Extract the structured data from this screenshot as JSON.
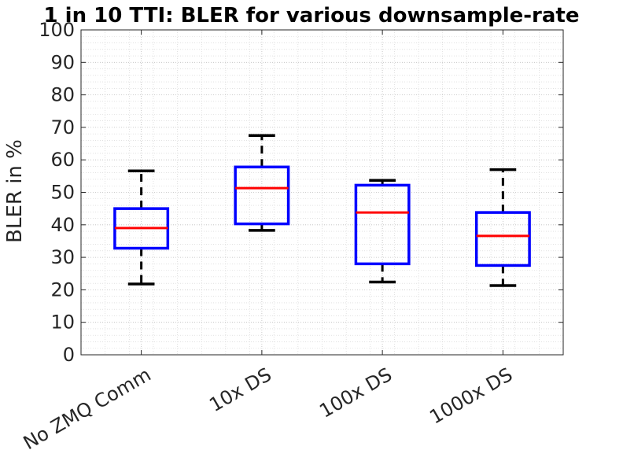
{
  "chart_data": {
    "type": "box",
    "title": "1 in 10 TTI: BLER for various downsample-rate",
    "xlabel": "",
    "ylabel": "BLER in %",
    "ylim": [
      0,
      100
    ],
    "yticks": [
      0,
      10,
      20,
      30,
      40,
      50,
      60,
      70,
      80,
      90,
      100
    ],
    "grid": true,
    "minor_grid": true,
    "categories": [
      "No ZMQ Comm",
      "10x DS",
      "100x DS",
      "1000x DS"
    ],
    "boxes": [
      {
        "category": "No ZMQ Comm",
        "whisker_low": 21.8,
        "q1": 32.8,
        "median": 39.0,
        "q3": 45.0,
        "whisker_high": 56.6
      },
      {
        "category": "10x DS",
        "whisker_low": 38.3,
        "q1": 40.3,
        "median": 51.3,
        "q3": 57.8,
        "whisker_high": 67.5
      },
      {
        "category": "100x DS",
        "whisker_low": 22.4,
        "q1": 28.0,
        "median": 43.8,
        "q3": 52.2,
        "whisker_high": 53.7
      },
      {
        "category": "1000x DS",
        "whisker_low": 21.3,
        "q1": 27.5,
        "median": 36.6,
        "q3": 43.8,
        "whisker_high": 57.0
      }
    ],
    "colors": {
      "box": "#0000ff",
      "median": "#ff0000",
      "whisker": "#000000"
    }
  }
}
